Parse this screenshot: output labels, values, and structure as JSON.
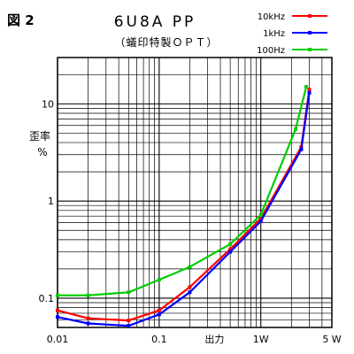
{
  "figure_label": "図 2",
  "chart_data": {
    "type": "line",
    "title": "6U8A PP",
    "subtitle": "（蟻印特製ＯＰＴ）",
    "xlabel": "出力",
    "ylabel": [
      "歪率",
      "%"
    ],
    "x_scale": "log",
    "y_scale": "log",
    "xlim": [
      0.01,
      5
    ],
    "ylim": [
      0.05,
      30
    ],
    "x_ticks": [
      {
        "value": 0.01,
        "label": "0.01"
      },
      {
        "value": 0.1,
        "label": "0.1"
      },
      {
        "value": 1,
        "label": "1W"
      },
      {
        "value": 5,
        "label": "5 W"
      }
    ],
    "y_ticks": [
      {
        "value": 0.1,
        "label": "0.1"
      },
      {
        "value": 1,
        "label": "1"
      },
      {
        "value": 10,
        "label": "10"
      }
    ],
    "grid": true,
    "legend_position": "top-right",
    "series": [
      {
        "name": "10kHz",
        "color": "#ff0000",
        "x": [
          0.01,
          0.02,
          0.05,
          0.1,
          0.2,
          0.5,
          1,
          2.5,
          3
        ],
        "y": [
          0.075,
          0.062,
          0.059,
          0.075,
          0.13,
          0.32,
          0.66,
          3.6,
          14
        ]
      },
      {
        "name": "1kHz",
        "color": "#0000ff",
        "x": [
          0.01,
          0.02,
          0.05,
          0.1,
          0.2,
          0.5,
          1,
          2.5,
          3
        ],
        "y": [
          0.064,
          0.055,
          0.052,
          0.068,
          0.115,
          0.3,
          0.62,
          3.4,
          13
        ]
      },
      {
        "name": "100Hz",
        "color": "#00cc00",
        "x": [
          0.01,
          0.02,
          0.05,
          0.1,
          0.2,
          0.5,
          1,
          2.2,
          2.8
        ],
        "y": [
          0.107,
          0.107,
          0.115,
          0.155,
          0.21,
          0.36,
          0.72,
          5.5,
          15
        ]
      }
    ]
  }
}
